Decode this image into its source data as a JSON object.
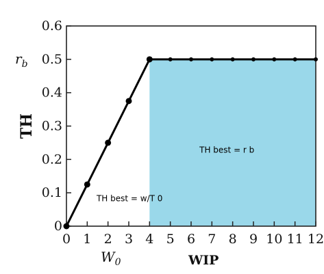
{
  "chart_data": {
    "type": "line",
    "xlabel": "WIP",
    "ylabel": "TH",
    "xlim": [
      0,
      12
    ],
    "ylim": [
      0,
      0.6
    ],
    "x_ticks": [
      "0",
      "1",
      "2",
      "3",
      "4",
      "5",
      "6",
      "7",
      "8",
      "9",
      "10",
      "11",
      "12"
    ],
    "y_ticks": [
      "0",
      "0.1",
      "0.2",
      "0.3",
      "0.4",
      "0.5",
      "0.6"
    ],
    "series": [
      {
        "x": [
          0,
          1,
          2,
          3,
          4,
          5,
          6,
          7,
          8,
          9,
          10,
          11,
          12
        ],
        "values": [
          0,
          0.125,
          0.25,
          0.375,
          0.5,
          0.5,
          0.5,
          0.5,
          0.5,
          0.5,
          0.5,
          0.5,
          0.5
        ]
      }
    ],
    "shaded_region": {
      "x": [
        4,
        12
      ],
      "y": [
        0,
        0.5
      ],
      "color": "#9ad8ea"
    },
    "y_marker_label": {
      "base": "r",
      "sub": "b",
      "at": 0.5
    },
    "x_marker_label": {
      "base": "W",
      "sub": "0",
      "at": 4
    },
    "annotations": {
      "ramp": "TH best = w/T 0",
      "flat": "TH best = r b"
    },
    "grid": false,
    "legend": "none"
  }
}
